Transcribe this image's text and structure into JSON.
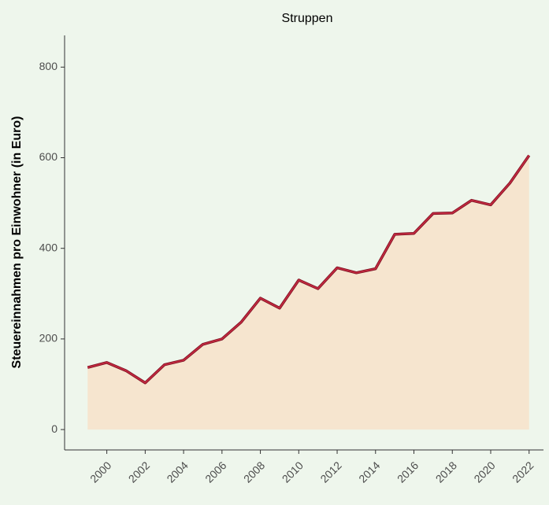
{
  "chart_data": {
    "type": "area",
    "title": "Struppen",
    "ylabel": "Steuereinnahmen pro Einwohner (in Euro)",
    "x": [
      1999,
      2000,
      2001,
      2002,
      2003,
      2004,
      2005,
      2006,
      2007,
      2008,
      2009,
      2010,
      2011,
      2012,
      2013,
      2014,
      2015,
      2016,
      2017,
      2018,
      2019,
      2020,
      2021,
      2022
    ],
    "series": [
      {
        "name": "Struppen",
        "color": "#c0283f",
        "fill": "#f6e5cf",
        "values": [
          137,
          148,
          130,
          103,
          143,
          153,
          188,
          200,
          237,
          290,
          268,
          330,
          311,
          357,
          346,
          355,
          431,
          433,
          477,
          478,
          506,
          496,
          544,
          605
        ]
      }
    ],
    "xlim": [
      1997.8,
      2022.75
    ],
    "xticks": [
      2000,
      2002,
      2004,
      2006,
      2008,
      2010,
      2012,
      2014,
      2016,
      2018,
      2020,
      2022
    ],
    "ylim": [
      -45,
      870
    ],
    "yticks": [
      0,
      200,
      400,
      600,
      800
    ],
    "grid": false
  }
}
